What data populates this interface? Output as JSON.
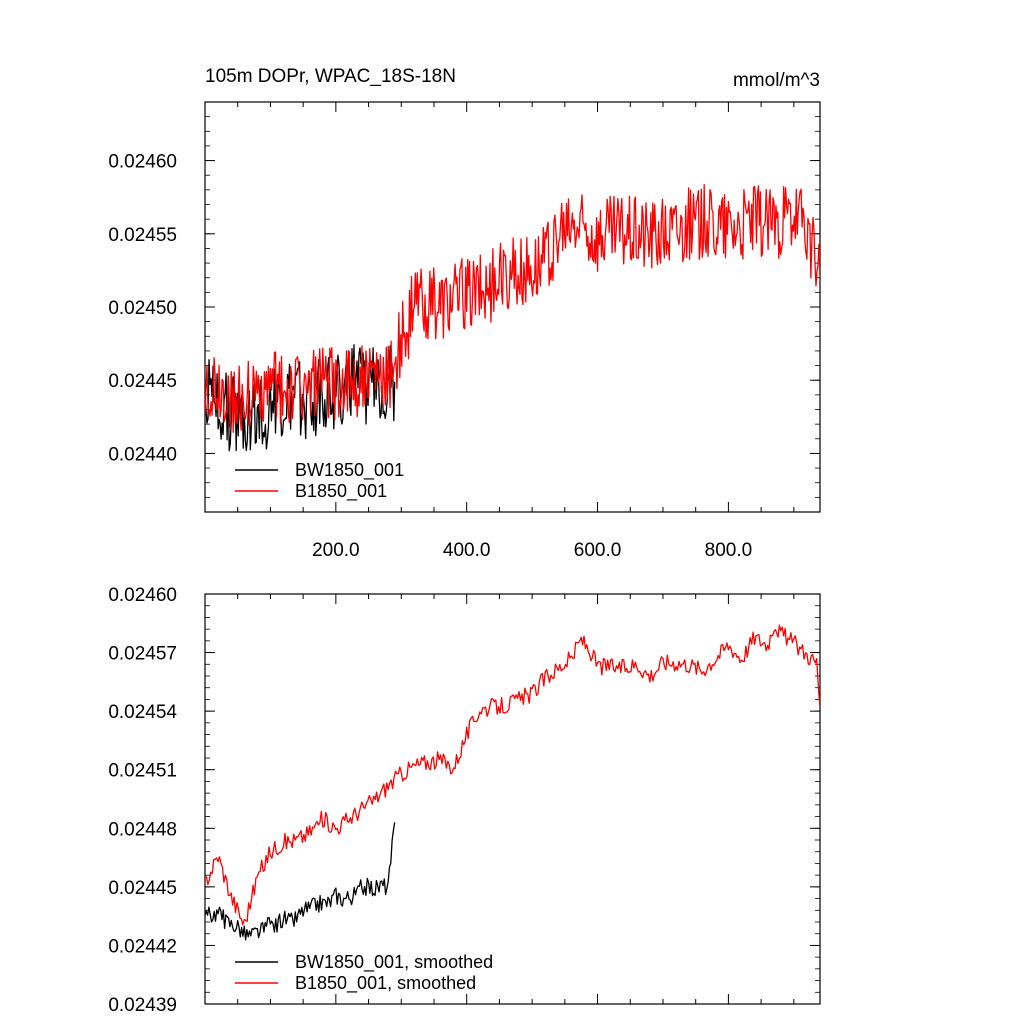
{
  "chart_data": [
    {
      "type": "line",
      "title": "105m DOPr, WPAC_18S-18N",
      "units": "mmol/m^3",
      "xlim": [
        0,
        940
      ],
      "ylim": [
        0.02436,
        0.02464
      ],
      "x_ticks": [
        200,
        400,
        600,
        800
      ],
      "x_tick_labels": [
        "200.0",
        "400.0",
        "600.0",
        "800.0"
      ],
      "y_ticks": [
        0.0244,
        0.02445,
        0.0245,
        0.02455,
        0.0246
      ],
      "y_tick_labels": [
        "0.02440",
        "0.02445",
        "0.02450",
        "0.02455",
        "0.02460"
      ],
      "legend_position": "bottom-left",
      "series": [
        {
          "name": "BW1850_001",
          "color": "#000000",
          "x": [
            0,
            20,
            40,
            60,
            80,
            100,
            120,
            140,
            160,
            180,
            200,
            220,
            240,
            260,
            280,
            290
          ],
          "y": [
            0.02444,
            0.024435,
            0.024428,
            0.024425,
            0.024428,
            0.024432,
            0.024432,
            0.024435,
            0.024438,
            0.024442,
            0.024444,
            0.024446,
            0.024447,
            0.024449,
            0.02445,
            0.024449
          ]
        },
        {
          "name": "B1850_001",
          "color": "#ff0000",
          "x": [
            0,
            20,
            40,
            60,
            80,
            100,
            120,
            140,
            160,
            180,
            200,
            240,
            280,
            320,
            360,
            400,
            440,
            480,
            520,
            560,
            600,
            640,
            680,
            720,
            760,
            800,
            840,
            880,
            920,
            940
          ],
          "y": [
            0.024445,
            0.024443,
            0.024438,
            0.024437,
            0.024441,
            0.024443,
            0.024445,
            0.024445,
            0.024446,
            0.024447,
            0.024448,
            0.024449,
            0.02445,
            0.024501,
            0.024504,
            0.02451,
            0.024515,
            0.024525,
            0.024532,
            0.024555,
            0.02455,
            0.024553,
            0.02455,
            0.024553,
            0.024558,
            0.024555,
            0.02456,
            0.024557,
            0.024555,
            0.02452
          ]
        }
      ]
    },
    {
      "type": "line",
      "xlim": [
        0,
        940
      ],
      "ylim": [
        0.02439,
        0.0246
      ],
      "x_ticks": [
        200,
        400,
        600,
        800
      ],
      "y_ticks": [
        0.02439,
        0.02442,
        0.02445,
        0.02448,
        0.02451,
        0.02454,
        0.02457,
        0.0246
      ],
      "y_tick_labels": [
        "0.02439",
        "0.02442",
        "0.02445",
        "0.02448",
        "0.02451",
        "0.02454",
        "0.02457",
        "0.02460"
      ],
      "legend_position": "bottom-left",
      "series": [
        {
          "name": "BW1850_001, smoothed",
          "color": "#000000",
          "x": [
            0,
            10,
            20,
            30,
            40,
            50,
            60,
            70,
            80,
            90,
            100,
            110,
            120,
            130,
            140,
            150,
            160,
            170,
            180,
            190,
            200,
            210,
            220,
            230,
            240,
            250,
            260,
            270,
            280,
            290
          ],
          "y": [
            0.024435,
            0.024436,
            0.024437,
            0.024433,
            0.024431,
            0.02443,
            0.024426,
            0.024425,
            0.024427,
            0.024428,
            0.024431,
            0.02443,
            0.024434,
            0.024432,
            0.024434,
            0.024438,
            0.024439,
            0.024441,
            0.024442,
            0.024442,
            0.024446,
            0.024444,
            0.024445,
            0.024446,
            0.02445,
            0.02445,
            0.024449,
            0.024451,
            0.02445,
            0.024483
          ]
        },
        {
          "name": "B1850_001, smoothed",
          "color": "#ff0000",
          "x": [
            0,
            20,
            40,
            60,
            80,
            100,
            120,
            140,
            160,
            180,
            200,
            220,
            240,
            260,
            280,
            300,
            320,
            340,
            360,
            380,
            400,
            420,
            440,
            460,
            480,
            500,
            520,
            540,
            560,
            575,
            590,
            600,
            620,
            640,
            660,
            680,
            700,
            720,
            740,
            760,
            780,
            800,
            820,
            840,
            860,
            870,
            880,
            900,
            920,
            935,
            940
          ],
          "y": [
            0.024452,
            0.024466,
            0.024445,
            0.024431,
            0.024455,
            0.024468,
            0.024473,
            0.024474,
            0.024478,
            0.024485,
            0.02448,
            0.024485,
            0.02449,
            0.024495,
            0.024502,
            0.024508,
            0.024512,
            0.024514,
            0.024515,
            0.024511,
            0.024528,
            0.024541,
            0.024542,
            0.024543,
            0.024546,
            0.024549,
            0.024557,
            0.024562,
            0.024567,
            0.024577,
            0.02457,
            0.024563,
            0.024563,
            0.024562,
            0.024564,
            0.024558,
            0.024565,
            0.024565,
            0.024564,
            0.024561,
            0.024567,
            0.024574,
            0.024567,
            0.024578,
            0.024574,
            0.024585,
            0.02458,
            0.024575,
            0.024569,
            0.024565,
            0.024542
          ]
        }
      ]
    }
  ]
}
